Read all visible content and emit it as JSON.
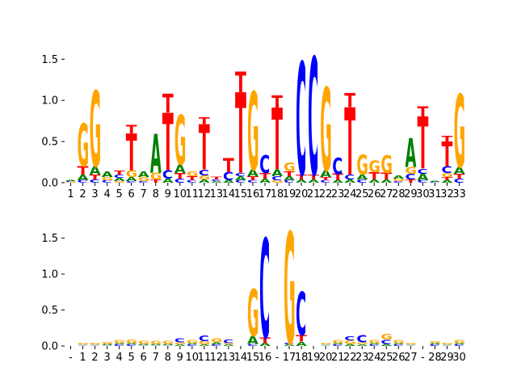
{
  "colors": {
    "A": "#008000",
    "C": "#0000ff",
    "G": "#ffa500",
    "T": "#ff0000"
  },
  "chart_data": [
    {
      "type": "sequence-logo",
      "ylim": [
        0,
        1.65
      ],
      "yticks": [
        "0.0",
        "0.5",
        "1.0",
        "1.5"
      ],
      "ytick_values": [
        0,
        0.5,
        1.0,
        1.5
      ],
      "xticks": [
        "1",
        "2",
        "3",
        "4",
        "5",
        "6",
        "7",
        "8",
        "9",
        "10",
        "11",
        "12",
        "13",
        "14",
        "15",
        "16",
        "17",
        "18",
        "19",
        "20",
        "21",
        "22",
        "23",
        "24",
        "25",
        "26",
        "27",
        "28",
        "29",
        "30",
        "31",
        "32",
        "33"
      ],
      "positions": [
        [
          [
            "G",
            0.01
          ],
          [
            "C",
            0.01
          ],
          [
            "A",
            0.01
          ]
        ],
        [
          [
            "C",
            0.03
          ],
          [
            "A",
            0.07
          ],
          [
            "T",
            0.1
          ],
          [
            "G",
            0.52
          ]
        ],
        [
          [
            "C",
            0.04
          ],
          [
            "T",
            0.06
          ],
          [
            "A",
            0.1
          ],
          [
            "G",
            0.92
          ]
        ],
        [
          [
            "C",
            0.03
          ],
          [
            "G",
            0.04
          ],
          [
            "A",
            0.07
          ]
        ],
        [
          [
            "G",
            0.02
          ],
          [
            "A",
            0.04
          ],
          [
            "C",
            0.04
          ],
          [
            "T",
            0.05
          ]
        ],
        [
          [
            "C",
            0.02
          ],
          [
            "A",
            0.05
          ],
          [
            "G",
            0.08
          ],
          [
            "T",
            0.45
          ],
          [
            "T",
            0.1
          ]
        ],
        [
          [
            "C",
            0.02
          ],
          [
            "G",
            0.05
          ],
          [
            "A",
            0.07
          ]
        ],
        [
          [
            "T",
            0.04
          ],
          [
            "G",
            0.08
          ],
          [
            "A",
            0.47
          ]
        ],
        [
          [
            "A",
            0.05
          ],
          [
            "C",
            0.1
          ],
          [
            "T",
            0.7
          ],
          [
            "T",
            0.23
          ]
        ],
        [
          [
            "C",
            0.05
          ],
          [
            "T",
            0.07
          ],
          [
            "A",
            0.1
          ],
          [
            "G",
            0.6
          ]
        ],
        [
          [
            "C",
            0.03
          ],
          [
            "T",
            0.05
          ],
          [
            "G",
            0.06
          ]
        ],
        [
          [
            "A",
            0.04
          ],
          [
            "G",
            0.05
          ],
          [
            "C",
            0.07
          ],
          [
            "T",
            0.55
          ],
          [
            "T",
            0.08
          ]
        ],
        [
          [
            "A",
            0.02
          ],
          [
            "C",
            0.02
          ],
          [
            "T",
            0.03
          ]
        ],
        [
          [
            "A",
            0.03
          ],
          [
            "C",
            0.1
          ],
          [
            "T",
            0.17
          ]
        ],
        [
          [
            "C",
            0.03
          ],
          [
            "A",
            0.05
          ],
          [
            "C",
            0.04
          ],
          [
            "T",
            0.98
          ],
          [
            "T",
            0.25
          ]
        ],
        [
          [
            "C",
            0.03
          ],
          [
            "T",
            0.05
          ],
          [
            "A",
            0.08
          ],
          [
            "G",
            0.95
          ]
        ],
        [
          [
            "A",
            0.05
          ],
          [
            "T",
            0.07
          ],
          [
            "C",
            0.22
          ]
        ],
        [
          [
            "G",
            0.03
          ],
          [
            "C",
            0.05
          ],
          [
            "A",
            0.08
          ],
          [
            "T",
            0.75
          ],
          [
            "T",
            0.15
          ]
        ],
        [
          [
            "C",
            0.03
          ],
          [
            "A",
            0.05
          ],
          [
            "T",
            0.06
          ],
          [
            "G",
            0.1
          ]
        ],
        [
          [
            "A",
            0.04
          ],
          [
            "T",
            0.06
          ],
          [
            "C",
            1.37
          ]
        ],
        [
          [
            "A",
            0.04
          ],
          [
            "T",
            0.06
          ],
          [
            "C",
            1.43
          ]
        ],
        [
          [
            "C",
            0.03
          ],
          [
            "T",
            0.04
          ],
          [
            "A",
            0.08
          ],
          [
            "G",
            1.01
          ]
        ],
        [
          [
            "A",
            0.03
          ],
          [
            "T",
            0.08
          ],
          [
            "C",
            0.2
          ]
        ],
        [
          [
            "A",
            0.04
          ],
          [
            "C",
            0.06
          ],
          [
            "T",
            0.82
          ],
          [
            "T",
            0.17
          ]
        ],
        [
          [
            "C",
            0.04
          ],
          [
            "A",
            0.06
          ],
          [
            "G",
            0.24
          ]
        ],
        [
          [
            "A",
            0.04
          ],
          [
            "T",
            0.09
          ],
          [
            "G",
            0.14
          ]
        ],
        [
          [
            "A",
            0.04
          ],
          [
            "T",
            0.08
          ],
          [
            "G",
            0.22
          ]
        ],
        [
          [
            "C",
            0.02
          ],
          [
            "G",
            0.03
          ],
          [
            "A",
            0.04
          ]
        ],
        [
          [
            "T",
            0.04
          ],
          [
            "C",
            0.07
          ],
          [
            "G",
            0.08
          ],
          [
            "A",
            0.35
          ]
        ],
        [
          [
            "C",
            0.03
          ],
          [
            "A",
            0.08
          ],
          [
            "C",
            0.06
          ],
          [
            "T",
            0.63
          ],
          [
            "T",
            0.13
          ]
        ],
        [
          [
            "C",
            0.01
          ],
          [
            "A",
            0.01
          ]
        ],
        [
          [
            "A",
            0.03
          ],
          [
            "T",
            0.04
          ],
          [
            "G",
            0.05
          ],
          [
            "C",
            0.08
          ],
          [
            "T",
            0.3
          ],
          [
            "T",
            0.07
          ]
        ],
        [
          [
            "C",
            0.05
          ],
          [
            "T",
            0.06
          ],
          [
            "A",
            0.08
          ],
          [
            "G",
            0.88
          ]
        ]
      ]
    },
    {
      "type": "sequence-logo",
      "ylim": [
        0,
        1.9
      ],
      "yticks": [
        "0.0",
        "0.5",
        "1.0",
        "1.5"
      ],
      "ytick_values": [
        0,
        0.5,
        1.0,
        1.5
      ],
      "xticks": [
        "-",
        "1",
        "2",
        "3",
        "4",
        "5",
        "6",
        "7",
        "8",
        "9",
        "10",
        "11",
        "12",
        "13",
        "14",
        "15",
        "16",
        "-",
        "17",
        "18",
        "19",
        "20",
        "21",
        "22",
        "23",
        "24",
        "25",
        "26",
        "27",
        "-",
        "28",
        "29",
        "30"
      ],
      "positions": [
        [],
        [
          [
            "C",
            0.01
          ],
          [
            "A",
            0.01
          ],
          [
            "G",
            0.02
          ]
        ],
        [
          [
            "C",
            0.01
          ],
          [
            "A",
            0.01
          ],
          [
            "G",
            0.02
          ]
        ],
        [
          [
            "C",
            0.01
          ],
          [
            "A",
            0.02
          ],
          [
            "G",
            0.03
          ]
        ],
        [
          [
            "C",
            0.02
          ],
          [
            "A",
            0.02
          ],
          [
            "G",
            0.04
          ]
        ],
        [
          [
            "C",
            0.02
          ],
          [
            "A",
            0.02
          ],
          [
            "G",
            0.05
          ]
        ],
        [
          [
            "C",
            0.01
          ],
          [
            "A",
            0.02
          ],
          [
            "G",
            0.04
          ]
        ],
        [
          [
            "C",
            0.01
          ],
          [
            "A",
            0.02
          ],
          [
            "G",
            0.04
          ]
        ],
        [
          [
            "C",
            0.01
          ],
          [
            "A",
            0.02
          ],
          [
            "G",
            0.04
          ]
        ],
        [
          [
            "A",
            0.02
          ],
          [
            "G",
            0.03
          ],
          [
            "C",
            0.06
          ]
        ],
        [
          [
            "C",
            0.02
          ],
          [
            "A",
            0.02
          ],
          [
            "G",
            0.04
          ]
        ],
        [
          [
            "A",
            0.02
          ],
          [
            "G",
            0.05
          ],
          [
            "C",
            0.08
          ]
        ],
        [
          [
            "C",
            0.02
          ],
          [
            "A",
            0.03
          ],
          [
            "G",
            0.06
          ]
        ],
        [
          [
            "A",
            0.02
          ],
          [
            "G",
            0.02
          ],
          [
            "C",
            0.05
          ]
        ],
        [],
        [
          [
            "C",
            0.03
          ],
          [
            "A",
            0.11
          ],
          [
            "G",
            0.65
          ]
        ],
        [
          [
            "A",
            0.04
          ],
          [
            "T",
            0.08
          ],
          [
            "C",
            1.38
          ]
        ],
        [],
        [
          [
            "A",
            0.02
          ],
          [
            "C",
            0.02
          ],
          [
            "G",
            1.55
          ]
        ],
        [
          [
            "A",
            0.06
          ],
          [
            "T",
            0.09
          ],
          [
            "C",
            0.6
          ]
        ],
        [],
        [
          [
            "C",
            0.01
          ],
          [
            "A",
            0.01
          ],
          [
            "G",
            0.02
          ]
        ],
        [
          [
            "C",
            0.02
          ],
          [
            "A",
            0.02
          ],
          [
            "G",
            0.04
          ]
        ],
        [
          [
            "A",
            0.03
          ],
          [
            "G",
            0.05
          ],
          [
            "C",
            0.06
          ]
        ],
        [
          [
            "A",
            0.02
          ],
          [
            "G",
            0.03
          ],
          [
            "C",
            0.1
          ]
        ],
        [
          [
            "C",
            0.02
          ],
          [
            "A",
            0.02
          ],
          [
            "G",
            0.04
          ]
        ],
        [
          [
            "A",
            0.03
          ],
          [
            "C",
            0.06
          ],
          [
            "G",
            0.08
          ]
        ],
        [
          [
            "C",
            0.02
          ],
          [
            "A",
            0.02
          ],
          [
            "G",
            0.04
          ]
        ],
        [
          [
            "C",
            0.01
          ],
          [
            "A",
            0.01
          ],
          [
            "G",
            0.02
          ]
        ],
        [],
        [
          [
            "C",
            0.02
          ],
          [
            "A",
            0.02
          ],
          [
            "G",
            0.03
          ]
        ],
        [
          [
            "C",
            0.01
          ],
          [
            "A",
            0.01
          ],
          [
            "G",
            0.02
          ]
        ],
        [
          [
            "C",
            0.02
          ],
          [
            "A",
            0.02
          ],
          [
            "G",
            0.04
          ]
        ]
      ]
    }
  ]
}
